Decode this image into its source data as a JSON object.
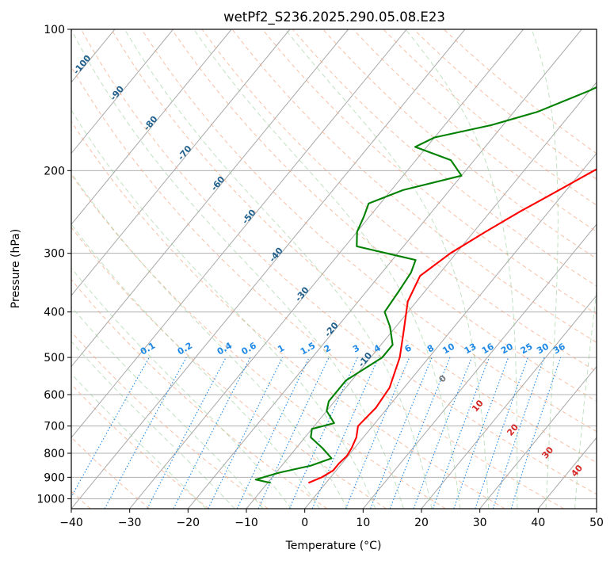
{
  "chart_data": {
    "type": "line",
    "subtype": "skew-t log-p diagram",
    "title": "wetPf2_S236.2025.290.05.08.E23",
    "xlabel": "Temperature (°C)",
    "ylabel": "Pressure (hPa)",
    "xlim": [
      -40,
      50
    ],
    "ylim": [
      1050,
      100
    ],
    "y_scale": "log",
    "grid": true,
    "x_ticks": [
      "−40",
      "−30",
      "−20",
      "−10",
      "0",
      "10",
      "20",
      "30",
      "40",
      "50"
    ],
    "y_ticks": [
      "100",
      "200",
      "300",
      "400",
      "500",
      "600",
      "700",
      "800",
      "900",
      "1000"
    ],
    "series": [
      {
        "color": "#ff0000",
        "points": [
          [
            -3,
            925
          ],
          [
            -1.5,
            900
          ],
          [
            -0.5,
            870
          ],
          [
            -0.5,
            840
          ],
          [
            -0.2,
            810
          ],
          [
            -0.5,
            780
          ],
          [
            -1.2,
            740
          ],
          [
            -2.5,
            700
          ],
          [
            -2,
            640
          ],
          [
            -2.5,
            580
          ],
          [
            -5,
            500
          ],
          [
            -8,
            440
          ],
          [
            -11.5,
            380
          ],
          [
            -13,
            335
          ],
          [
            -11,
            300
          ],
          [
            -8,
            270
          ],
          [
            -5,
            245
          ],
          [
            -2,
            225
          ],
          [
            2,
            200
          ],
          [
            5,
            185
          ],
          [
            8,
            170
          ],
          [
            11,
            150
          ],
          [
            14,
            135
          ],
          [
            18,
            120
          ],
          [
            25,
            108
          ],
          [
            30,
            100
          ]
        ]
      },
      {
        "color": "#008000",
        "points": [
          [
            -9.5,
            925
          ],
          [
            -12.5,
            910
          ],
          [
            -9.5,
            880
          ],
          [
            -5,
            850
          ],
          [
            -2.5,
            820
          ],
          [
            -5.5,
            780
          ],
          [
            -9,
            740
          ],
          [
            -10,
            710
          ],
          [
            -7,
            690
          ],
          [
            -10,
            650
          ],
          [
            -11,
            620
          ],
          [
            -11,
            560
          ],
          [
            -8,
            500
          ],
          [
            -8,
            470
          ],
          [
            -11,
            430
          ],
          [
            -14,
            400
          ],
          [
            -14.5,
            360
          ],
          [
            -15,
            330
          ],
          [
            -16,
            310
          ],
          [
            -28,
            290
          ],
          [
            -30,
            270
          ],
          [
            -31,
            250
          ],
          [
            -32,
            235
          ],
          [
            -28,
            220
          ],
          [
            -20,
            205
          ],
          [
            -24,
            190
          ],
          [
            -32,
            178
          ],
          [
            -30,
            170
          ],
          [
            -22,
            160
          ],
          [
            -16,
            150
          ],
          [
            -10,
            135
          ],
          [
            -5,
            120
          ],
          [
            -1,
            100
          ]
        ]
      }
    ],
    "dry_adiabat_labels": [],
    "moist_adiabat_labels": [
      "0",
      "10",
      "20",
      "30",
      "40"
    ],
    "mixing_ratio_labels": [
      "0.1",
      "0.2",
      "0.4",
      "0.6",
      "1",
      "1.5",
      "2",
      "3",
      "4",
      "6",
      "8",
      "10",
      "13",
      "16",
      "20",
      "25",
      "30",
      "36"
    ],
    "isotherm_labels": [
      "-100",
      "-90",
      "-80",
      "-70",
      "-60",
      "-50",
      "-40",
      "-30",
      "-20",
      "-10"
    ]
  }
}
